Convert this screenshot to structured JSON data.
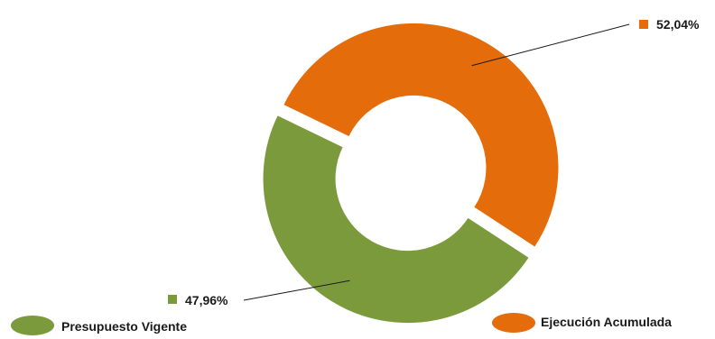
{
  "chart_data": {
    "type": "pie",
    "variant": "exploded-donut",
    "categories": [
      "Presupuesto Vigente",
      "Ejecución Acumulada"
    ],
    "values": [
      47.96,
      52.04
    ],
    "data_labels": [
      "47,96%",
      "52,04%"
    ],
    "colors": [
      "#7a9a3c",
      "#e46c0a"
    ],
    "legend": {
      "placement": "bottom",
      "items": [
        "Presupuesto Vigente",
        "Ejecución Acumulada"
      ]
    }
  }
}
